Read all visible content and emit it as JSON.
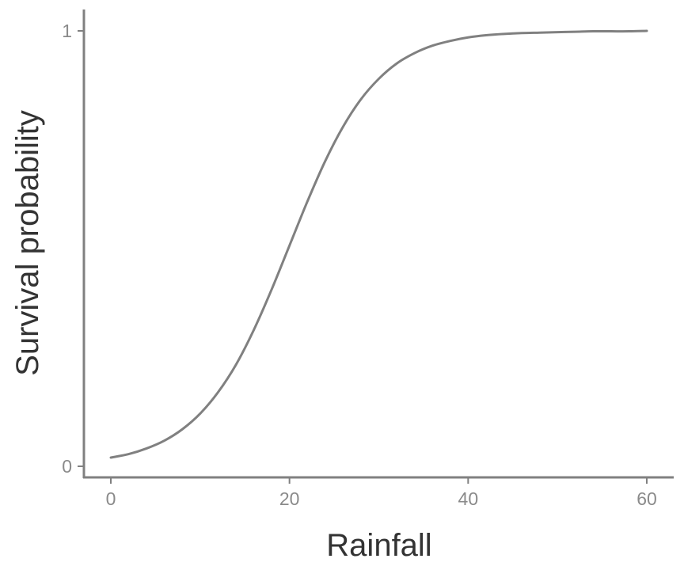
{
  "chart_data": {
    "type": "line",
    "title": "",
    "xlabel": "Rainfall",
    "ylabel": "Survival probability",
    "xlim": [
      0,
      60
    ],
    "ylim": [
      0,
      1
    ],
    "xticks": [
      0,
      20,
      40,
      60
    ],
    "yticks": [
      0,
      1
    ],
    "grid": false,
    "legend": "none",
    "colors": {
      "line": "#808080",
      "axis": "#808080",
      "tick_text": "#8a8a8a",
      "title_text": "#333333"
    },
    "series": [
      {
        "x": [
          0,
          2,
          4,
          6,
          8,
          10,
          12,
          14,
          16,
          18,
          20,
          22,
          24,
          26,
          28,
          30,
          32,
          34,
          36,
          38,
          40,
          42,
          44,
          46,
          48,
          50,
          52,
          54,
          56,
          58,
          60
        ],
        "y": [
          0.02,
          0.028,
          0.041,
          0.059,
          0.085,
          0.121,
          0.17,
          0.233,
          0.313,
          0.406,
          0.507,
          0.608,
          0.701,
          0.78,
          0.843,
          0.89,
          0.925,
          0.949,
          0.966,
          0.977,
          0.985,
          0.99,
          0.993,
          0.995,
          0.996,
          0.997,
          0.998,
          0.999,
          0.999,
          0.999,
          1.0
        ]
      }
    ]
  }
}
